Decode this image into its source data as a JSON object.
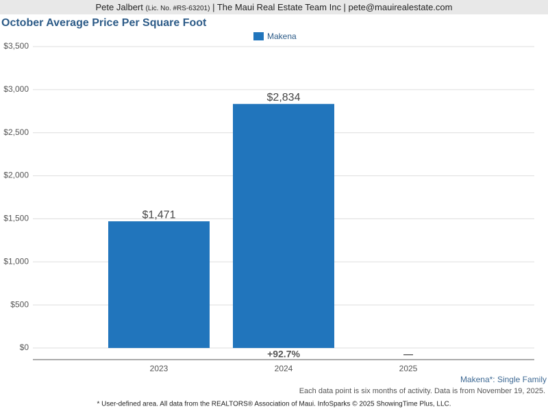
{
  "header": {
    "name": "Pete Jalbert",
    "license": "(Lic. No. #RS-63201)",
    "rest": "| The Maui Real Estate Team Inc | pete@mauirealestate.com"
  },
  "chart_data": {
    "type": "bar",
    "title": "October Average Price Per Square Foot",
    "series": [
      {
        "name": "Makena",
        "color": "#2175bc",
        "values": [
          1471,
          2834,
          null
        ],
        "value_labels": [
          "$1,471",
          "$2,834",
          null
        ]
      }
    ],
    "categories": [
      "2023",
      "2024",
      "2025"
    ],
    "change_labels": [
      null,
      "+92.7%",
      "—"
    ],
    "ylim": [
      0,
      3500
    ],
    "yticks": [
      {
        "value": 0,
        "label": "$0"
      },
      {
        "value": 500,
        "label": "$500"
      },
      {
        "value": 1000,
        "label": "$1,000"
      },
      {
        "value": 1500,
        "label": "$1,500"
      },
      {
        "value": 2000,
        "label": "$2,000"
      },
      {
        "value": 2500,
        "label": "$2,500"
      },
      {
        "value": 3000,
        "label": "$3,000"
      },
      {
        "value": 3500,
        "label": "$3,500"
      }
    ],
    "grid": true
  },
  "footer": {
    "area": "Makena*: Single Family",
    "note": "Each data point is six months of activity. Data is from November 19, 2025.",
    "source": "* User-defined area. All data from the REALTORS® Association of Maui. InfoSparks © 2025 ShowingTime Plus, LLC."
  }
}
